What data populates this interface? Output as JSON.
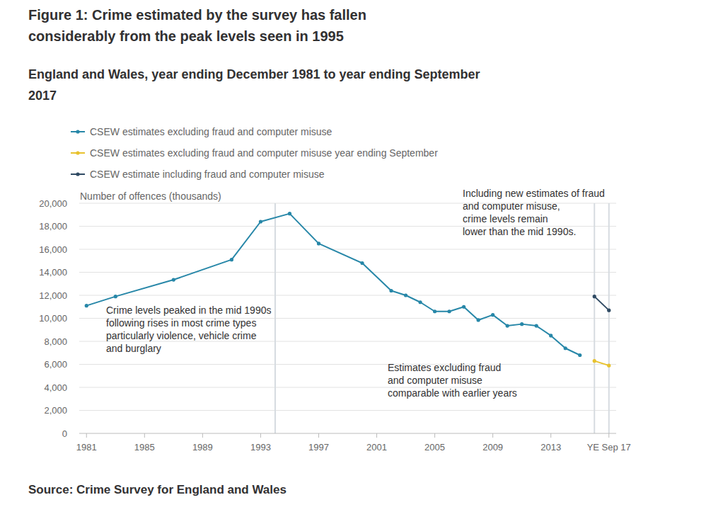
{
  "chart_data": {
    "type": "line",
    "title": "Figure 1: Crime estimated by the survey has fallen considerably from the peak levels seen in 1995",
    "subtitle": "England and Wales, year ending December 1981 to year ending September 2017",
    "source": "Source: Crime Survey for England and Wales",
    "y_label": "Number of offences (thousands)",
    "xlim": [
      1980.5,
      2017.5
    ],
    "xticks": [
      1981,
      1985,
      1989,
      1993,
      1997,
      2001,
      2005,
      2009,
      2013,
      {
        "value": 2017,
        "label": "YE Sep 17"
      }
    ],
    "ylim": [
      0,
      20000
    ],
    "yticks": [
      0,
      {
        "value": 2000,
        "label": "2,000"
      },
      {
        "value": 4000,
        "label": "4,000"
      },
      {
        "value": 6000,
        "label": "6,000"
      },
      {
        "value": 8000,
        "label": "8,000"
      },
      {
        "value": 10000,
        "label": "10,000"
      },
      {
        "value": 12000,
        "label": "12,000"
      },
      {
        "value": 14000,
        "label": "14,000"
      },
      {
        "value": 16000,
        "label": "16,000"
      },
      {
        "value": 18000,
        "label": "18,000"
      },
      {
        "value": 20000,
        "label": "20,000"
      }
    ],
    "grid": true,
    "legend": "top-left",
    "marker": "circle",
    "reference_lines": [
      1994,
      2016,
      2017
    ],
    "annotations": [
      {
        "lines": [
          "Crime levels peaked in the mid 1990s",
          "following rises in most crime types",
          "particularly violence, vehicle crime",
          "and burglary"
        ]
      },
      {
        "lines": [
          "Estimates excluding fraud",
          "and computer misuse",
          "comparable with earlier years"
        ]
      },
      {
        "lines": [
          "Including new estimates of fraud",
          "and computer misuse,",
          "crime levels remain",
          "lower than the mid 1990s."
        ]
      }
    ],
    "series": [
      {
        "name": "CSEW estimates excluding fraud and computer misuse",
        "color": "#2787a8",
        "x": [
          1981,
          1983,
          1987,
          1991,
          1993,
          1995,
          1997,
          2000,
          2002,
          2003,
          2004,
          2005,
          2006,
          2007,
          2008,
          2009,
          2010,
          2011,
          2012,
          2013,
          2014,
          2015
        ],
        "values": [
          11100,
          11900,
          13350,
          15100,
          18400,
          19100,
          16500,
          14800,
          12400,
          12000,
          11400,
          10600,
          10600,
          11000,
          9850,
          10300,
          9350,
          9500,
          9350,
          8500,
          7400,
          6800
        ]
      },
      {
        "name": "CSEW estimates excluding fraud and computer misuse year ending September",
        "color": "#e8c22e",
        "x": [
          2016,
          2017
        ],
        "values": [
          6300,
          5900
        ]
      },
      {
        "name": "CSEW estimate including fraud and computer misuse",
        "color": "#2f4a63",
        "x": [
          2016,
          2017
        ],
        "values": [
          11900,
          10700
        ]
      }
    ]
  }
}
